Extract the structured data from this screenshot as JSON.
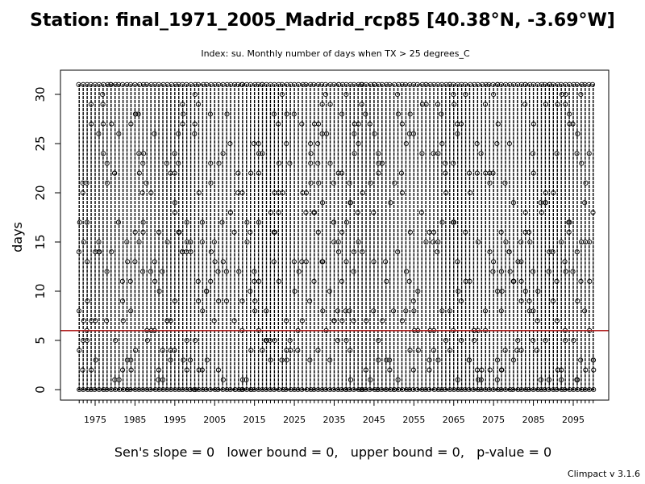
{
  "header": {
    "title": "Station: final_1971_2005_Madrid_rcp85 [40.38°N, -3.69°W]",
    "subtitle": "Index: su. Monthly number of days when TX > 25 degrees_C"
  },
  "footer": {
    "sens_text": "Sen's slope = 0   lower bound = 0,   upper bound = 0,   p-value = 0",
    "version": "Climpact v 3.1.6"
  },
  "chart_data": {
    "type": "boxplot",
    "ylabel": "days",
    "xlabel": "",
    "ylim": [
      0,
      31
    ],
    "xlim": [
      1971,
      2100
    ],
    "yticks": [
      0,
      5,
      10,
      15,
      20,
      25,
      30
    ],
    "xticks": [
      1975,
      1985,
      1995,
      2005,
      2015,
      2025,
      2035,
      2045,
      2055,
      2065,
      2075,
      2085,
      2095
    ],
    "grid": false,
    "per_year_summary": {
      "years": [
        1971,
        2100
      ],
      "min": 0,
      "q1": 0,
      "median": 0,
      "max": 31,
      "description_values": "monthly counts range 0 to 31; winter months 0, summer months near 30-31"
    },
    "reference_line": {
      "y": 6,
      "color": "#b22222"
    },
    "sens_slope": 0,
    "lower_bound": 0,
    "upper_bound": 0,
    "p_value": 0
  }
}
